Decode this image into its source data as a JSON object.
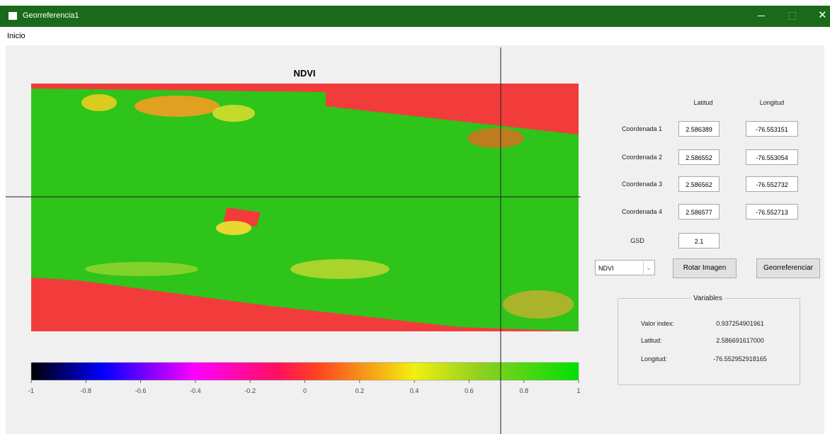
{
  "window": {
    "title": "Georreferencia1"
  },
  "menu": [
    "Inicio"
  ],
  "plot": {
    "title": "NDVI",
    "colorbar_ticks": [
      -1,
      -0.8,
      -0.6,
      -0.4,
      -0.2,
      0,
      0.2,
      0.4,
      0.6,
      0.8,
      1
    ]
  },
  "panel": {
    "headers": [
      "Latitud",
      "Longitud"
    ],
    "rows": [
      {
        "label": "Coordenada 1",
        "lat": "2.586389",
        "lon": "-76.553151"
      },
      {
        "label": "Coordenada 2",
        "lat": "2.586552",
        "lon": "-76.553054"
      },
      {
        "label": "Coordenada 3",
        "lat": "2.586562",
        "lon": "-76.552732"
      },
      {
        "label": "Coordenada 4",
        "lat": "2.586577",
        "lon": "-76.552713"
      }
    ],
    "gsd": {
      "label": "GSD",
      "value": "2.1"
    },
    "dropdown": "NDVI",
    "buttons": [
      "Rotar Imagen",
      "Georreferenciar"
    ],
    "variables": {
      "title": "Variables",
      "rows": [
        {
          "label": "Valor index:",
          "value": "0.937254901961"
        },
        {
          "label": "Latitud:",
          "value": "2.586691617000"
        },
        {
          "label": "Longitud:",
          "value": "-76.552952918165"
        }
      ]
    }
  }
}
